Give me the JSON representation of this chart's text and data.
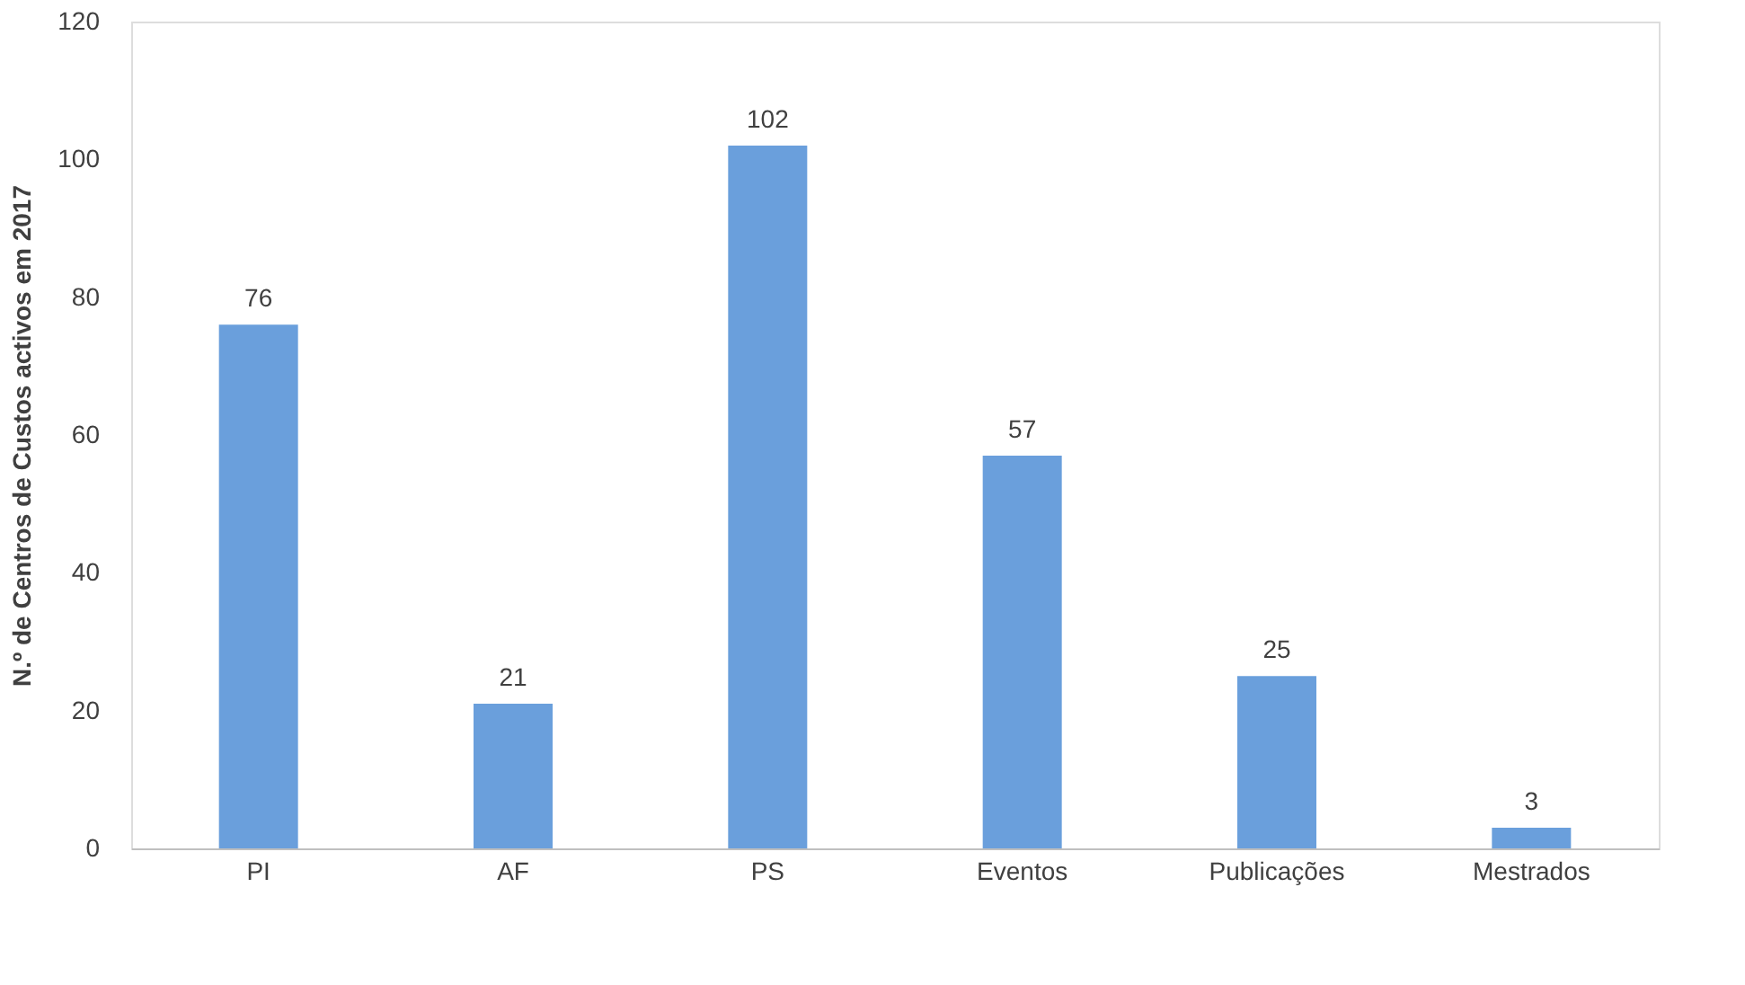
{
  "chart_data": {
    "type": "bar",
    "ylabel": "N.º de Centros de Custos activos em 2017",
    "categories": [
      "PI",
      "AF",
      "PS",
      "Eventos",
      "Publicações",
      "Mestrados"
    ],
    "values": [
      76,
      21,
      102,
      57,
      25,
      3
    ],
    "color": "#6a9fdc",
    "ylim": [
      0,
      120
    ],
    "yticks": [
      0,
      20,
      40,
      60,
      80,
      100,
      120
    ],
    "grid": false,
    "data_labels": true
  }
}
